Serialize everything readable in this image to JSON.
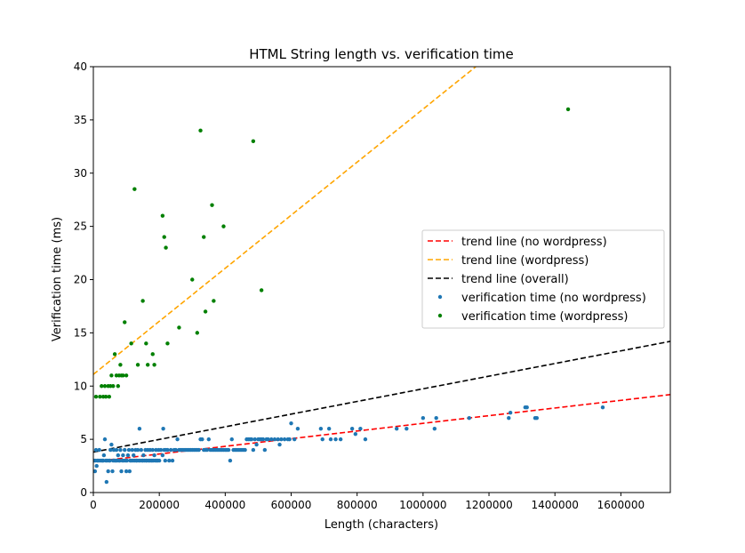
{
  "chart_data": {
    "type": "scatter",
    "title": "HTML String length vs. verification time",
    "xlabel": "Length (characters)",
    "ylabel": "Verification time (ms)",
    "xlim": [
      0,
      1750000
    ],
    "ylim": [
      0,
      40
    ],
    "xticks": [
      0,
      200000,
      400000,
      600000,
      800000,
      1000000,
      1200000,
      1400000,
      1600000
    ],
    "yticks": [
      0,
      5,
      10,
      15,
      20,
      25,
      30,
      35,
      40
    ],
    "grid": false,
    "legend_position": "center-right",
    "lines": [
      {
        "name": "trend line (no wordpress)",
        "color": "#ff0000",
        "dash": "dashed",
        "points": [
          [
            0,
            2.9
          ],
          [
            1750000,
            9.2
          ]
        ]
      },
      {
        "name": "trend line (wordpress)",
        "color": "#ffa500",
        "dash": "dashed",
        "points": [
          [
            0,
            11.1
          ],
          [
            1160000,
            40
          ]
        ]
      },
      {
        "name": "trend line (overall)",
        "color": "#000000",
        "dash": "dashed",
        "points": [
          [
            0,
            3.8
          ],
          [
            1750000,
            14.2
          ]
        ]
      }
    ],
    "series": [
      {
        "name": "verification time (no wordpress)",
        "color": "#1f77b4",
        "points": [
          [
            2000,
            3
          ],
          [
            5000,
            2
          ],
          [
            6000,
            3
          ],
          [
            8000,
            4
          ],
          [
            10000,
            2.5
          ],
          [
            12000,
            3
          ],
          [
            15000,
            3
          ],
          [
            18000,
            4
          ],
          [
            20000,
            3
          ],
          [
            25000,
            3
          ],
          [
            28000,
            3
          ],
          [
            30000,
            3
          ],
          [
            32000,
            3.5
          ],
          [
            35000,
            5
          ],
          [
            38000,
            3
          ],
          [
            40000,
            1
          ],
          [
            42000,
            3
          ],
          [
            45000,
            2
          ],
          [
            48000,
            3
          ],
          [
            50000,
            3
          ],
          [
            52000,
            4
          ],
          [
            55000,
            4.5
          ],
          [
            58000,
            2
          ],
          [
            60000,
            3
          ],
          [
            62000,
            4
          ],
          [
            65000,
            3
          ],
          [
            68000,
            3
          ],
          [
            70000,
            4
          ],
          [
            72000,
            3
          ],
          [
            75000,
            3.5
          ],
          [
            78000,
            3
          ],
          [
            80000,
            3
          ],
          [
            82000,
            4
          ],
          [
            85000,
            2
          ],
          [
            88000,
            3
          ],
          [
            90000,
            3.5
          ],
          [
            92000,
            3
          ],
          [
            95000,
            4
          ],
          [
            98000,
            3
          ],
          [
            100000,
            2
          ],
          [
            102000,
            3
          ],
          [
            105000,
            3.5
          ],
          [
            108000,
            4
          ],
          [
            110000,
            2
          ],
          [
            112000,
            3
          ],
          [
            115000,
            3
          ],
          [
            118000,
            4
          ],
          [
            120000,
            3
          ],
          [
            122000,
            3.5
          ],
          [
            125000,
            3
          ],
          [
            128000,
            4
          ],
          [
            130000,
            3
          ],
          [
            132000,
            3
          ],
          [
            135000,
            4
          ],
          [
            138000,
            3
          ],
          [
            140000,
            6
          ],
          [
            142000,
            3
          ],
          [
            145000,
            4
          ],
          [
            148000,
            3
          ],
          [
            150000,
            3
          ],
          [
            152000,
            3.5
          ],
          [
            155000,
            3
          ],
          [
            158000,
            4
          ],
          [
            160000,
            3
          ],
          [
            162000,
            3
          ],
          [
            165000,
            4
          ],
          [
            168000,
            3
          ],
          [
            170000,
            3
          ],
          [
            172000,
            4
          ],
          [
            175000,
            3
          ],
          [
            178000,
            3
          ],
          [
            180000,
            4
          ],
          [
            182000,
            3
          ],
          [
            185000,
            3.5
          ],
          [
            188000,
            3
          ],
          [
            190000,
            4
          ],
          [
            192000,
            3
          ],
          [
            195000,
            3
          ],
          [
            198000,
            4
          ],
          [
            200000,
            3
          ],
          [
            205000,
            4
          ],
          [
            210000,
            3.5
          ],
          [
            212000,
            6
          ],
          [
            215000,
            4
          ],
          [
            218000,
            3
          ],
          [
            220000,
            4
          ],
          [
            225000,
            4
          ],
          [
            230000,
            3
          ],
          [
            235000,
            4
          ],
          [
            240000,
            3
          ],
          [
            245000,
            4
          ],
          [
            250000,
            4
          ],
          [
            255000,
            5
          ],
          [
            260000,
            4
          ],
          [
            265000,
            4
          ],
          [
            270000,
            4
          ],
          [
            275000,
            4
          ],
          [
            280000,
            4
          ],
          [
            285000,
            4
          ],
          [
            290000,
            4
          ],
          [
            295000,
            4
          ],
          [
            300000,
            4
          ],
          [
            305000,
            4
          ],
          [
            310000,
            4
          ],
          [
            315000,
            4
          ],
          [
            320000,
            4
          ],
          [
            325000,
            5
          ],
          [
            330000,
            5
          ],
          [
            335000,
            4
          ],
          [
            340000,
            4
          ],
          [
            345000,
            4
          ],
          [
            350000,
            5
          ],
          [
            355000,
            4
          ],
          [
            360000,
            4
          ],
          [
            365000,
            4
          ],
          [
            370000,
            4
          ],
          [
            375000,
            4
          ],
          [
            380000,
            4
          ],
          [
            385000,
            4
          ],
          [
            390000,
            4
          ],
          [
            395000,
            4
          ],
          [
            400000,
            4
          ],
          [
            405000,
            4
          ],
          [
            410000,
            4
          ],
          [
            415000,
            3
          ],
          [
            420000,
            5
          ],
          [
            425000,
            4
          ],
          [
            430000,
            4
          ],
          [
            435000,
            4
          ],
          [
            440000,
            4
          ],
          [
            445000,
            4
          ],
          [
            450000,
            4
          ],
          [
            455000,
            4
          ],
          [
            460000,
            4
          ],
          [
            465000,
            5
          ],
          [
            470000,
            5
          ],
          [
            475000,
            5
          ],
          [
            480000,
            5
          ],
          [
            485000,
            4
          ],
          [
            490000,
            5
          ],
          [
            495000,
            4.5
          ],
          [
            500000,
            5
          ],
          [
            505000,
            5
          ],
          [
            510000,
            5
          ],
          [
            515000,
            5
          ],
          [
            520000,
            4
          ],
          [
            525000,
            5
          ],
          [
            530000,
            5
          ],
          [
            540000,
            5
          ],
          [
            550000,
            5
          ],
          [
            560000,
            5
          ],
          [
            565000,
            4.5
          ],
          [
            570000,
            5
          ],
          [
            580000,
            5
          ],
          [
            590000,
            5
          ],
          [
            595000,
            5
          ],
          [
            600000,
            6.5
          ],
          [
            610000,
            5
          ],
          [
            620000,
            6
          ],
          [
            690000,
            6
          ],
          [
            695000,
            5
          ],
          [
            715000,
            6
          ],
          [
            720000,
            5
          ],
          [
            735000,
            5
          ],
          [
            750000,
            5
          ],
          [
            785000,
            6
          ],
          [
            795000,
            5.5
          ],
          [
            810000,
            6
          ],
          [
            825000,
            5
          ],
          [
            920000,
            6
          ],
          [
            950000,
            6
          ],
          [
            1000000,
            7
          ],
          [
            1035000,
            6
          ],
          [
            1040000,
            7
          ],
          [
            1140000,
            7
          ],
          [
            1260000,
            7
          ],
          [
            1265000,
            7.5
          ],
          [
            1310000,
            8
          ],
          [
            1315000,
            8
          ],
          [
            1340000,
            7
          ],
          [
            1345000,
            7
          ],
          [
            1545000,
            8
          ]
        ]
      },
      {
        "name": "verification time (wordpress)",
        "color": "#008000",
        "points": [
          [
            8000,
            9
          ],
          [
            20000,
            9
          ],
          [
            25000,
            10
          ],
          [
            30000,
            9
          ],
          [
            35000,
            10
          ],
          [
            38000,
            9
          ],
          [
            45000,
            10
          ],
          [
            48000,
            9
          ],
          [
            52000,
            10
          ],
          [
            55000,
            11
          ],
          [
            60000,
            10
          ],
          [
            65000,
            13
          ],
          [
            70000,
            11
          ],
          [
            75000,
            10
          ],
          [
            78000,
            11
          ],
          [
            82000,
            12
          ],
          [
            85000,
            11
          ],
          [
            90000,
            11
          ],
          [
            95000,
            16
          ],
          [
            100000,
            11
          ],
          [
            115000,
            14
          ],
          [
            125000,
            28.5
          ],
          [
            135000,
            12
          ],
          [
            150000,
            18
          ],
          [
            160000,
            14
          ],
          [
            165000,
            12
          ],
          [
            180000,
            13
          ],
          [
            185000,
            12
          ],
          [
            210000,
            26
          ],
          [
            215000,
            24
          ],
          [
            220000,
            23
          ],
          [
            225000,
            14
          ],
          [
            260000,
            15.5
          ],
          [
            300000,
            20
          ],
          [
            315000,
            15
          ],
          [
            325000,
            34
          ],
          [
            335000,
            24
          ],
          [
            340000,
            17
          ],
          [
            360000,
            27
          ],
          [
            365000,
            18
          ],
          [
            395000,
            25
          ],
          [
            485000,
            33
          ],
          [
            510000,
            19
          ],
          [
            1440000,
            36
          ]
        ]
      }
    ]
  }
}
